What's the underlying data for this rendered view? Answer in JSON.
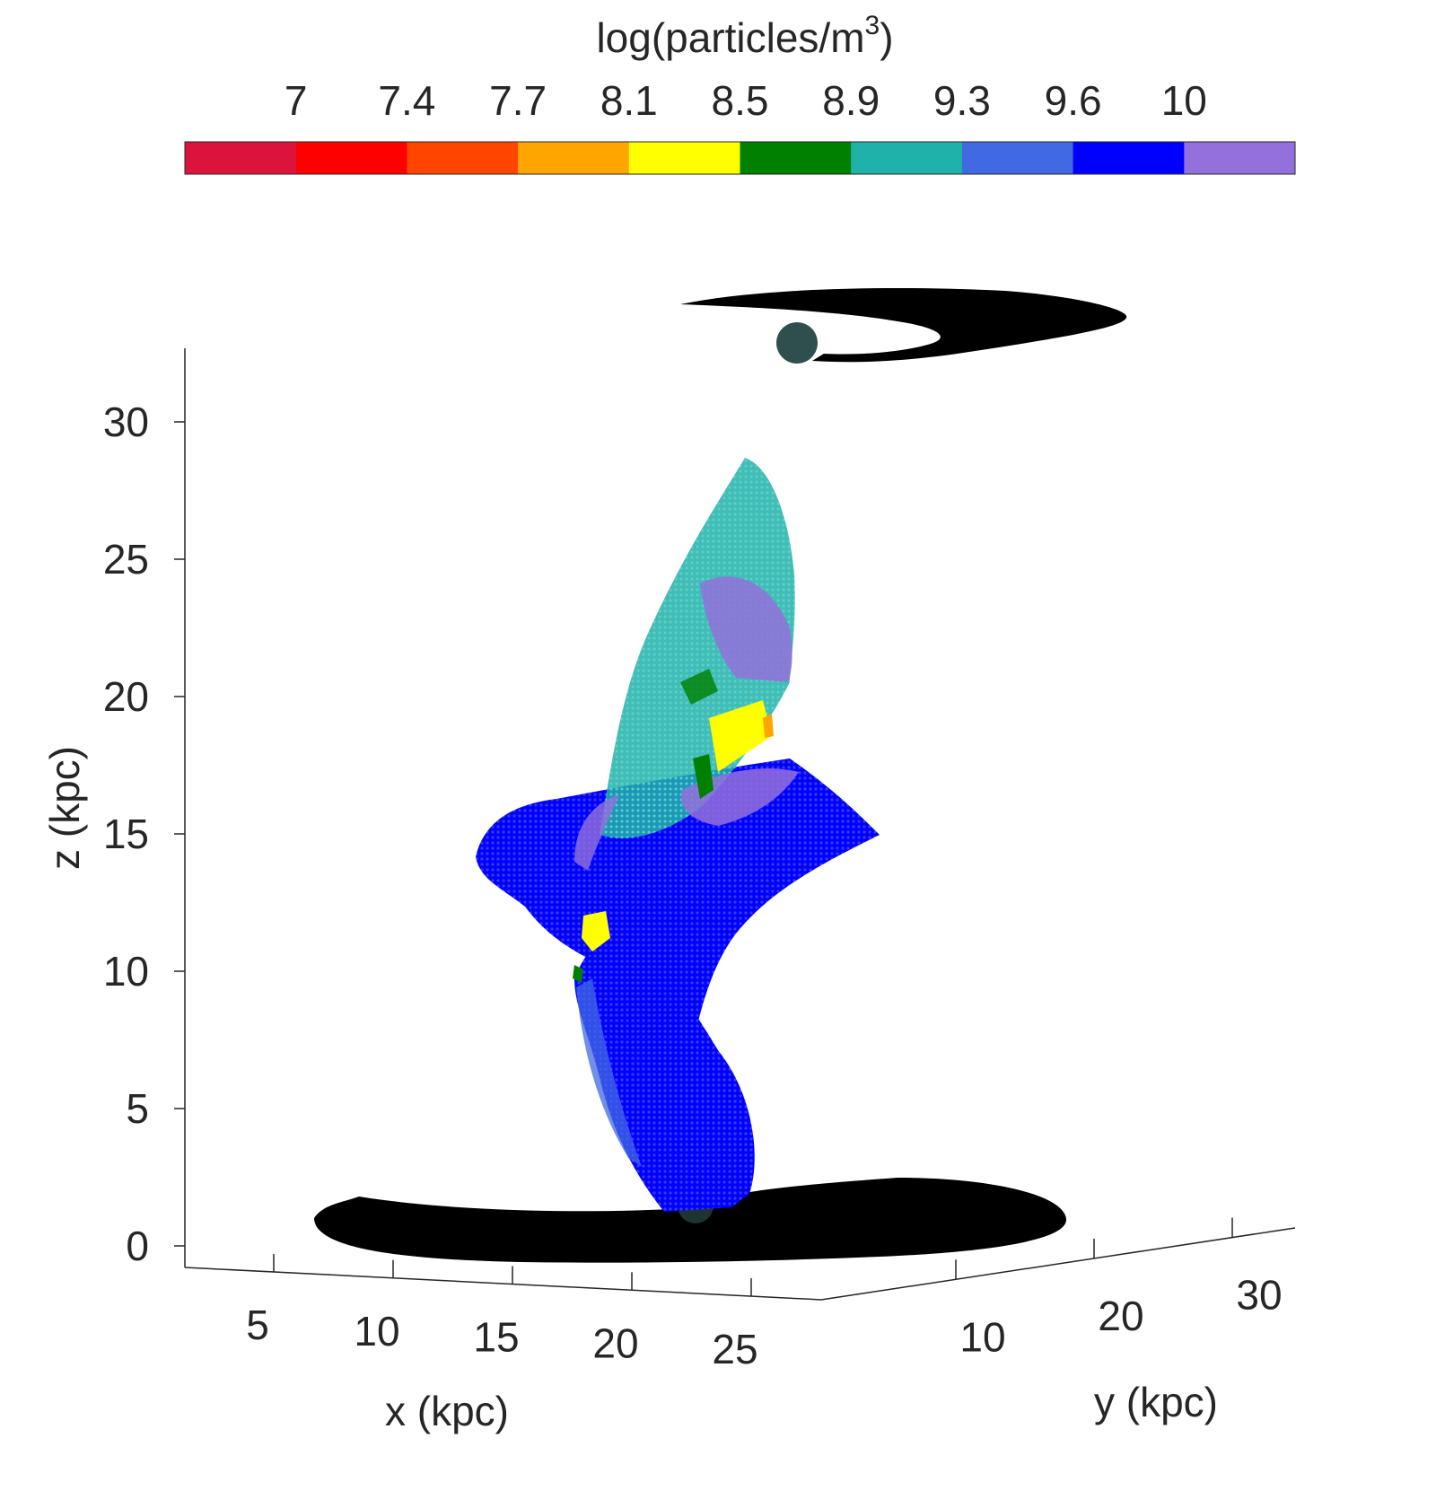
{
  "chart_data": {
    "type": "scatter",
    "projection": "3d",
    "title": "",
    "xlabel": "x (kpc)",
    "ylabel": "y (kpc)",
    "zlabel": "z (kpc)",
    "x_ticks": [
      "5",
      "10",
      "15",
      "20",
      "25"
    ],
    "y_ticks": [
      "10",
      "20",
      "30"
    ],
    "z_ticks": [
      "0",
      "5",
      "10",
      "15",
      "20",
      "25",
      "30"
    ],
    "zlim": [
      0,
      32
    ],
    "grid": false,
    "colorbar": {
      "label_prefix": "log(particles/m",
      "label_exponent": "3",
      "label_suffix": ")",
      "location": "top",
      "ticks": [
        "7",
        "7.4",
        "7.7",
        "8.1",
        "8.5",
        "8.9",
        "9.3",
        "9.6",
        "10"
      ],
      "colors": [
        "#DC143C",
        "#FF0000",
        "#FF4500",
        "#FFA500",
        "#FFFF00",
        "#008000",
        "#20B2AA",
        "#4169E1",
        "#0000FF",
        "#9370DB"
      ]
    },
    "series": [
      {
        "description_color": "#000000",
        "z_level": 0
      },
      {
        "description_color": "#000000",
        "z_level": 32
      },
      {
        "description_color": "#0000FF",
        "z_range": [
          1,
          15
        ]
      },
      {
        "description_color": "#20B2AA",
        "z_range": [
          10,
          28
        ]
      }
    ],
    "markers": [
      {
        "color": "#2F4F4F",
        "z": 32
      },
      {
        "color": "#2F4F4F",
        "z": 1
      }
    ]
  }
}
